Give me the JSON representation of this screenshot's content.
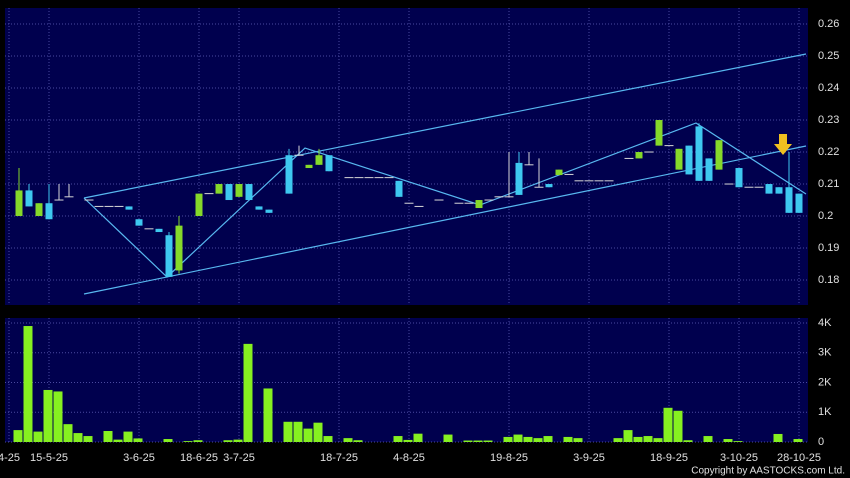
{
  "chart_data": {
    "type": "candlestick",
    "categories": [
      "4-25",
      null,
      null,
      null,
      "15-5-25",
      null,
      null,
      null,
      null,
      null,
      null,
      null,
      null,
      "3-6-25",
      null,
      null,
      null,
      null,
      null,
      "18-6-25",
      null,
      null,
      null,
      "3-7-25",
      null,
      null,
      null,
      null,
      null,
      null,
      null,
      null,
      null,
      "18-7-25",
      null,
      null,
      null,
      null,
      null,
      null,
      "4-8-25",
      null,
      null,
      null,
      null,
      null,
      null,
      null,
      null,
      null,
      "19-8-25",
      null,
      null,
      null,
      null,
      null,
      null,
      null,
      "3-9-25",
      null,
      null,
      null,
      null,
      null,
      null,
      null,
      "18-9-25",
      null,
      null,
      null,
      null,
      null,
      null,
      "3-10-25",
      null,
      null,
      null,
      null,
      null,
      "28-10-25"
    ],
    "open": [
      null,
      0.2,
      0.208,
      0.2,
      0.204,
      0.205,
      0.206,
      null,
      0.205,
      0.203,
      0.203,
      0.203,
      0.203,
      0.199,
      0.196,
      0.196,
      0.194,
      0.183,
      null,
      0.2,
      0.207,
      0.207,
      0.21,
      0.206,
      0.21,
      0.203,
      0.202,
      null,
      0.219,
      0.219,
      0.215,
      0.216,
      0.219,
      null,
      0.212,
      0.212,
      0.212,
      0.212,
      0.212,
      0.211,
      0.204,
      0.203,
      null,
      0.205,
      null,
      0.204,
      0.204,
      0.2025,
      0.205,
      0.206,
      0.206,
      0.2166,
      0.216,
      0.209,
      0.21,
      0.2128,
      0.213,
      0.211,
      0.211,
      0.211,
      0.211,
      null,
      0.218,
      0.218,
      0.22,
      0.222,
      0.222,
      0.2145,
      0.222,
      0.228,
      0.218,
      0.2145,
      0.21,
      0.215,
      0.209,
      0.209,
      0.21,
      0.209,
      0.209,
      0.207
    ],
    "high": [
      null,
      0.215,
      0.21,
      0.204,
      0.21,
      0.21,
      0.21,
      null,
      0.205,
      0.203,
      0.203,
      0.203,
      0.203,
      0.199,
      0.196,
      0.196,
      0.195,
      0.2,
      null,
      0.207,
      0.207,
      0.21,
      0.21,
      0.21,
      0.21,
      0.203,
      0.202,
      null,
      0.221,
      0.222,
      0.216,
      0.221,
      0.219,
      null,
      0.212,
      0.212,
      0.212,
      0.212,
      0.212,
      0.211,
      0.204,
      0.203,
      null,
      0.205,
      null,
      0.204,
      0.204,
      0.205,
      0.205,
      0.206,
      0.22,
      0.22,
      0.22,
      0.218,
      0.21,
      0.2145,
      0.213,
      0.211,
      0.211,
      0.211,
      0.211,
      null,
      0.218,
      0.22,
      0.22,
      0.23,
      0.222,
      0.221,
      0.222,
      0.229,
      0.218,
      0.2237,
      0.21,
      0.215,
      0.209,
      0.209,
      0.21,
      0.209,
      0.22,
      0.207
    ],
    "low": [
      null,
      0.2,
      0.203,
      0.2,
      0.199,
      0.205,
      0.206,
      null,
      0.205,
      0.203,
      0.203,
      0.203,
      0.202,
      0.197,
      0.196,
      0.195,
      0.181,
      0.182,
      null,
      0.2,
      0.207,
      0.207,
      0.205,
      0.206,
      0.205,
      0.202,
      0.201,
      null,
      0.207,
      0.219,
      0.215,
      0.216,
      0.214,
      null,
      0.212,
      0.212,
      0.212,
      0.212,
      0.212,
      0.206,
      0.204,
      0.203,
      null,
      0.205,
      null,
      0.204,
      0.204,
      0.2025,
      0.205,
      0.206,
      0.206,
      0.2066,
      0.216,
      0.209,
      0.209,
      0.2128,
      0.213,
      0.211,
      0.211,
      0.211,
      0.211,
      null,
      0.218,
      0.218,
      0.22,
      0.222,
      0.222,
      0.2145,
      0.213,
      0.211,
      0.211,
      0.2145,
      0.21,
      0.209,
      0.209,
      0.209,
      0.207,
      0.207,
      0.201,
      0.201
    ],
    "close": [
      null,
      0.208,
      0.203,
      0.204,
      0.199,
      0.205,
      0.206,
      null,
      0.205,
      0.203,
      0.203,
      0.203,
      0.202,
      0.197,
      0.196,
      0.195,
      0.181,
      0.197,
      null,
      0.207,
      0.207,
      0.21,
      0.205,
      0.21,
      0.205,
      0.202,
      0.201,
      null,
      0.207,
      0.219,
      0.216,
      0.219,
      0.214,
      null,
      0.212,
      0.212,
      0.212,
      0.212,
      0.212,
      0.206,
      0.204,
      0.203,
      null,
      0.205,
      null,
      0.204,
      0.204,
      0.205,
      0.205,
      0.206,
      0.206,
      0.2066,
      0.216,
      0.209,
      0.209,
      0.2145,
      0.213,
      0.211,
      0.211,
      0.211,
      0.211,
      null,
      0.218,
      0.22,
      0.22,
      0.23,
      0.222,
      0.221,
      0.213,
      0.211,
      0.211,
      0.2237,
      0.21,
      0.209,
      0.209,
      0.209,
      0.207,
      0.207,
      0.201,
      0.201
    ],
    "up_color": "#86d82a",
    "down_color": "#3ec8f0",
    "flat_color": "#d8d8d8",
    "ylim": [
      0.1722,
      0.265
    ],
    "yticks": [
      0.18,
      0.19,
      0.2,
      0.21,
      0.22,
      0.23,
      0.24,
      0.25,
      0.26
    ],
    "grid": true,
    "volume": {
      "type": "bar",
      "color": "#86f020",
      "values": [
        null,
        400,
        3900,
        350,
        1750,
        1700,
        600,
        300,
        200,
        null,
        370,
        80,
        350,
        120,
        null,
        null,
        100,
        null,
        30,
        60,
        null,
        null,
        60,
        80,
        3300,
        null,
        1800,
        null,
        680,
        680,
        450,
        650,
        200,
        null,
        130,
        60,
        null,
        null,
        null,
        200,
        70,
        280,
        null,
        null,
        250,
        null,
        50,
        50,
        50,
        null,
        170,
        250,
        170,
        130,
        200,
        null,
        170,
        130,
        null,
        null,
        null,
        130,
        400,
        170,
        200,
        130,
        1150,
        1050,
        60,
        null,
        200,
        null,
        100,
        30,
        null,
        null,
        null,
        270,
        null,
        100
      ],
      "ylim": [
        0,
        4170
      ],
      "yticks": [
        0,
        {
          "value": 1000,
          "label": "1K"
        },
        {
          "value": 2000,
          "label": "2K"
        },
        {
          "value": 3000,
          "label": "3K"
        },
        {
          "value": 4000,
          "label": "4K"
        }
      ]
    },
    "copyright": "Copyright by AASTOCKS.com Ltd."
  }
}
